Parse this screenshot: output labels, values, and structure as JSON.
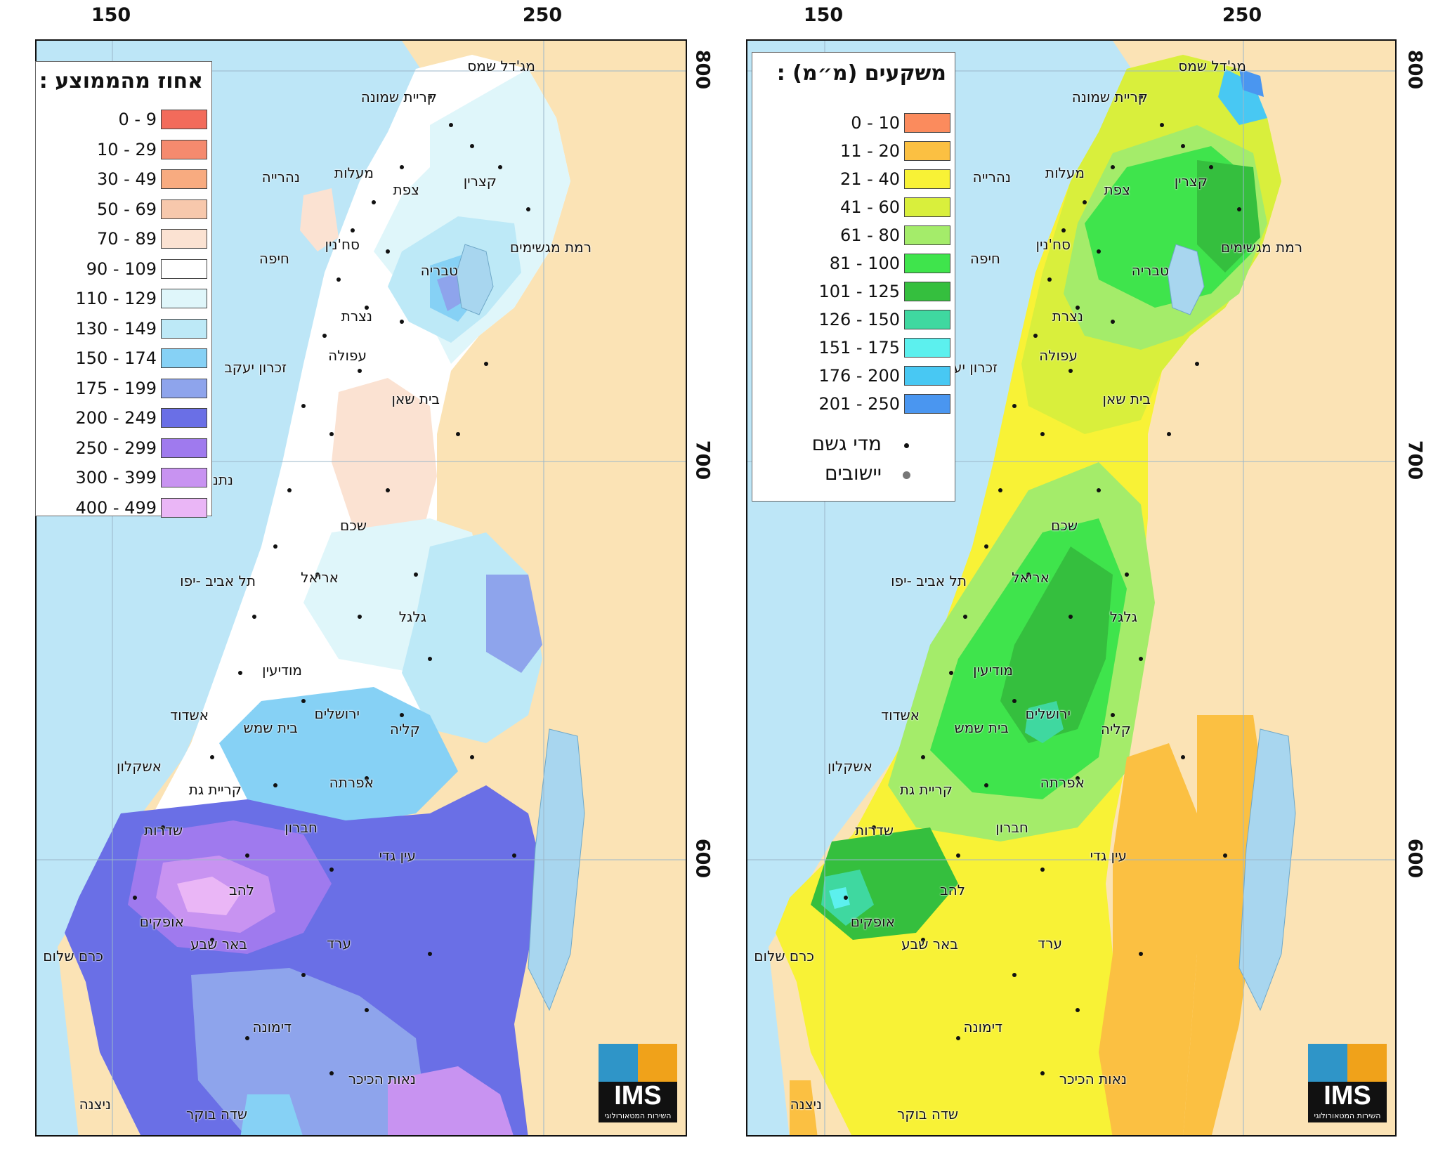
{
  "axes": {
    "x_ticks": [
      "150",
      "250"
    ],
    "y_ticks": [
      "800",
      "700",
      "600"
    ]
  },
  "colors": {
    "sea": "#bde6f7",
    "land": "#fbe3b5",
    "lake": "#a8d6ef"
  },
  "left_map": {
    "legend_title": "אחוז מהממוצע :",
    "legend": [
      {
        "label": "0 - 9",
        "color": "#f26b5b"
      },
      {
        "label": "10 - 29",
        "color": "#f58a6e"
      },
      {
        "label": "30 - 49",
        "color": "#f8ab80"
      },
      {
        "label": "50 - 69",
        "color": "#f7c8ac"
      },
      {
        "label": "70 - 89",
        "color": "#fbe2d2"
      },
      {
        "label": "90 - 109",
        "color": "#ffffff"
      },
      {
        "label": "110 - 129",
        "color": "#dff6fa"
      },
      {
        "label": "130 - 149",
        "color": "#bde9f7"
      },
      {
        "label": "150 - 174",
        "color": "#86d1f5"
      },
      {
        "label": "175 - 199",
        "color": "#8ea4ec"
      },
      {
        "label": "200 - 249",
        "color": "#6a6fe6"
      },
      {
        "label": "250 - 299",
        "color": "#9f7aee"
      },
      {
        "label": "300 - 399",
        "color": "#c893f1"
      },
      {
        "label": "400 - 499",
        "color": "#eab6f6"
      }
    ]
  },
  "right_map": {
    "legend_title": "משקעים (מ״מ) :",
    "legend": [
      {
        "label": "0 - 10",
        "color": "#fb8b5d"
      },
      {
        "label": "11 - 20",
        "color": "#fbc042"
      },
      {
        "label": "21 - 40",
        "color": "#f8f236"
      },
      {
        "label": "41 - 60",
        "color": "#d9ef3c"
      },
      {
        "label": "61 - 80",
        "color": "#a4ec6a"
      },
      {
        "label": "81 - 100",
        "color": "#3fe44c"
      },
      {
        "label": "101 - 125",
        "color": "#35bf3e"
      },
      {
        "label": "126 - 150",
        "color": "#3fd8a0"
      },
      {
        "label": "151 - 175",
        "color": "#5cf0ee"
      },
      {
        "label": "176 - 200",
        "color": "#48c8f3"
      },
      {
        "label": "201 - 250",
        "color": "#4a96f0"
      }
    ],
    "symbol_rain": "מדי גשם",
    "symbol_settlement": "יישובים"
  },
  "cities": [
    {
      "name": "מג'דל שמס"
    },
    {
      "name": "קריית שמונה"
    },
    {
      "name": "נהרייה"
    },
    {
      "name": "מעלות"
    },
    {
      "name": "צפת"
    },
    {
      "name": "קצרין"
    },
    {
      "name": "סח'נין"
    },
    {
      "name": "רמת מגשימים"
    },
    {
      "name": "חיפה"
    },
    {
      "name": "טבריה"
    },
    {
      "name": "נצרת"
    },
    {
      "name": "עפולה"
    },
    {
      "name": "זכרון יעקב"
    },
    {
      "name": "בית שאן"
    },
    {
      "name": "נתניה"
    },
    {
      "name": "שכם"
    },
    {
      "name": "אריאל"
    },
    {
      "name": "תל אביב -יפו"
    },
    {
      "name": "גלגל"
    },
    {
      "name": "מודיעין"
    },
    {
      "name": "אשדוד"
    },
    {
      "name": "ירושלים"
    },
    {
      "name": "בית שמש"
    },
    {
      "name": "קליה"
    },
    {
      "name": "אשקלון"
    },
    {
      "name": "אפרתה"
    },
    {
      "name": "קריית גת"
    },
    {
      "name": "חברון"
    },
    {
      "name": "שדרות"
    },
    {
      "name": "עין גדי"
    },
    {
      "name": "להב"
    },
    {
      "name": "אופקים"
    },
    {
      "name": "באר שבע"
    },
    {
      "name": "ערד"
    },
    {
      "name": "כרם שלום"
    },
    {
      "name": "דימונה"
    },
    {
      "name": "נאות הכיכר"
    },
    {
      "name": "ניצנה"
    },
    {
      "name": "שדה בוקר"
    }
  ],
  "logo": {
    "text": "IMS",
    "subtitle": "השירות המטאורולוגי"
  }
}
